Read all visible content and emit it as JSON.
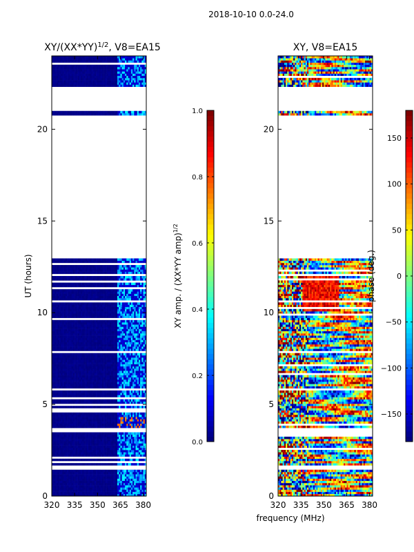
{
  "figure_title": "2018-10-10 0.0-24.0",
  "colormap": {
    "name": "jet",
    "stops": [
      "#00007f",
      "#0000ff",
      "#007fff",
      "#00ffff",
      "#7fff7f",
      "#ffff00",
      "#ff7f00",
      "#ff0000",
      "#7f0000"
    ]
  },
  "chart_data": [
    {
      "type": "heatmap",
      "id": "ratio",
      "title_main": "XY/(XX*YY)",
      "title_exp": "1/2",
      "title_suffix": ", V8=EA15",
      "xlabel": "",
      "ylabel": "UT (hours)",
      "xlim": [
        320,
        382
      ],
      "ylim": [
        0,
        24
      ],
      "xticks": [
        320,
        335,
        350,
        365,
        380
      ],
      "yticks": [
        0,
        5,
        10,
        15,
        20
      ],
      "colorbar": {
        "label_main": "XY amp. / (XX*YY amp)",
        "label_exp": "1/2",
        "range": [
          0.0,
          1.0
        ],
        "ticks": [
          "0.0",
          "0.2",
          "0.4",
          "0.6",
          "0.8",
          "1.0"
        ]
      }
    },
    {
      "type": "heatmap",
      "id": "phase",
      "title_main": "XY, V8=EA15",
      "xlabel": "frequency (MHz)",
      "ylabel": "",
      "xlim": [
        320,
        382
      ],
      "ylim": [
        0,
        24
      ],
      "xticks": [
        320,
        335,
        350,
        365,
        380
      ],
      "yticks": [
        0,
        5,
        10,
        15,
        20
      ],
      "colorbar": {
        "label_main": "phase (deg.)",
        "range": [
          -180,
          180
        ],
        "ticks": [
          "−150",
          "−100",
          "−50",
          "0",
          "50",
          "100",
          "150"
        ],
        "tick_values": [
          -150,
          -100,
          -50,
          0,
          50,
          100,
          150
        ]
      }
    }
  ],
  "data_coverage_hours": [
    [
      0.0,
      1.5
    ],
    [
      1.7,
      3.5
    ],
    [
      3.7,
      5.0
    ],
    [
      5.1,
      7.8
    ],
    [
      7.9,
      13.0
    ],
    [
      20.75,
      21.05
    ],
    [
      22.3,
      24.0
    ]
  ],
  "ratio_bright_band_start_mhz": 363
}
